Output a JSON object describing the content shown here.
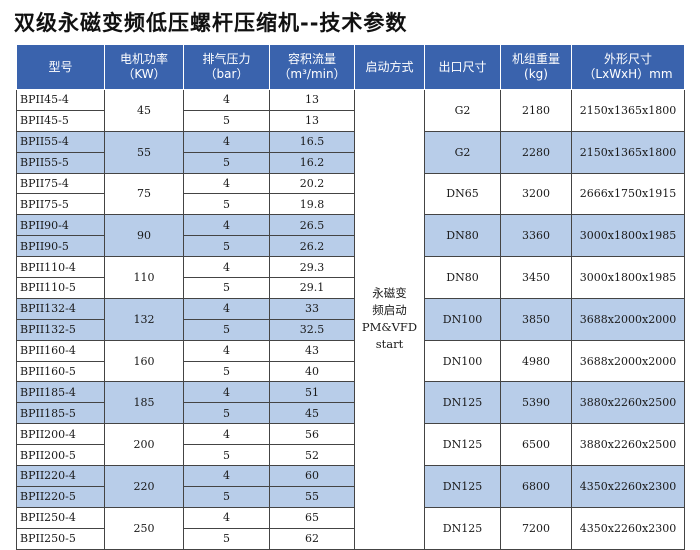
{
  "title": "双级永磁变频低压螺杆压缩机--技术参数",
  "colors": {
    "header_bg": "#3a63ad",
    "header_text": "#ffffff",
    "highlight_row": "#b8cde9",
    "border": "#444444"
  },
  "headers": {
    "model": "型号",
    "power": "电机功率",
    "power_unit": "（KW）",
    "pressure": "排气压力",
    "pressure_unit": "（bar）",
    "flow": "容积流量",
    "flow_unit": "（m³/min）",
    "start": "启动方式",
    "outlet": "出口尺寸",
    "weight": "机组重量",
    "weight_unit": "(kg)",
    "dims": "外形尺寸",
    "dims_unit": "（LxWxH）mm"
  },
  "start_method": {
    "line1": "永磁变",
    "line2": "频启动",
    "line3": "PM&VFD",
    "line4": "start"
  },
  "groups": [
    {
      "kw": "45",
      "outlet": "G2",
      "weight": "2180",
      "dims": "2150x1365x1800",
      "highlight": false,
      "rows": [
        {
          "model": "BPII45-4",
          "bar": "4",
          "flow": "13"
        },
        {
          "model": "BPII45-5",
          "bar": "5",
          "flow": "13"
        }
      ]
    },
    {
      "kw": "55",
      "outlet": "G2",
      "weight": "2280",
      "dims": "2150x1365x1800",
      "highlight": true,
      "rows": [
        {
          "model": "BPII55-4",
          "bar": "4",
          "flow": "16.5"
        },
        {
          "model": "BPII55-5",
          "bar": "5",
          "flow": "16.2"
        }
      ]
    },
    {
      "kw": "75",
      "outlet": "DN65",
      "weight": "3200",
      "dims": "2666x1750x1915",
      "highlight": false,
      "rows": [
        {
          "model": "BPII75-4",
          "bar": "4",
          "flow": "20.2"
        },
        {
          "model": "BPII75-5",
          "bar": "5",
          "flow": "19.8"
        }
      ]
    },
    {
      "kw": "90",
      "outlet": "DN80",
      "weight": "3360",
      "dims": "3000x1800x1985",
      "highlight": true,
      "rows": [
        {
          "model": "BPII90-4",
          "bar": "4",
          "flow": "26.5"
        },
        {
          "model": "BPII90-5",
          "bar": "5",
          "flow": "26.2"
        }
      ]
    },
    {
      "kw": "110",
      "outlet": "DN80",
      "weight": "3450",
      "dims": "3000x1800x1985",
      "highlight": false,
      "rows": [
        {
          "model": "BPII110-4",
          "bar": "4",
          "flow": "29.3"
        },
        {
          "model": "BPII110-5",
          "bar": "5",
          "flow": "29.1"
        }
      ]
    },
    {
      "kw": "132",
      "outlet": "DN100",
      "weight": "3850",
      "dims": "3688x2000x2000",
      "highlight": true,
      "rows": [
        {
          "model": "BPII132-4",
          "bar": "4",
          "flow": "33"
        },
        {
          "model": "BPII132-5",
          "bar": "5",
          "flow": "32.5"
        }
      ]
    },
    {
      "kw": "160",
      "outlet": "DN100",
      "weight": "4980",
      "dims": "3688x2000x2000",
      "highlight": false,
      "rows": [
        {
          "model": "BPII160-4",
          "bar": "4",
          "flow": "43"
        },
        {
          "model": "BPII160-5",
          "bar": "5",
          "flow": "40"
        }
      ]
    },
    {
      "kw": "185",
      "outlet": "DN125",
      "weight": "5390",
      "dims": "3880x2260x2500",
      "highlight": true,
      "rows": [
        {
          "model": "BPII185-4",
          "bar": "4",
          "flow": "51"
        },
        {
          "model": "BPII185-5",
          "bar": "5",
          "flow": "45"
        }
      ]
    },
    {
      "kw": "200",
      "outlet": "DN125",
      "weight": "6500",
      "dims": "3880x2260x2500",
      "highlight": false,
      "rows": [
        {
          "model": "BPII200-4",
          "bar": "4",
          "flow": "56"
        },
        {
          "model": "BPII200-5",
          "bar": "5",
          "flow": "52"
        }
      ]
    },
    {
      "kw": "220",
      "outlet": "DN125",
      "weight": "6800",
      "dims": "4350x2260x2300",
      "highlight": true,
      "rows": [
        {
          "model": "BPII220-4",
          "bar": "4",
          "flow": "60"
        },
        {
          "model": "BPII220-5",
          "bar": "5",
          "flow": "55"
        }
      ]
    },
    {
      "kw": "250",
      "outlet": "DN125",
      "weight": "7200",
      "dims": "4350x2260x2300",
      "highlight": false,
      "rows": [
        {
          "model": "BPII250-4",
          "bar": "4",
          "flow": "65"
        },
        {
          "model": "BPII250-5",
          "bar": "5",
          "flow": "62"
        }
      ]
    }
  ]
}
